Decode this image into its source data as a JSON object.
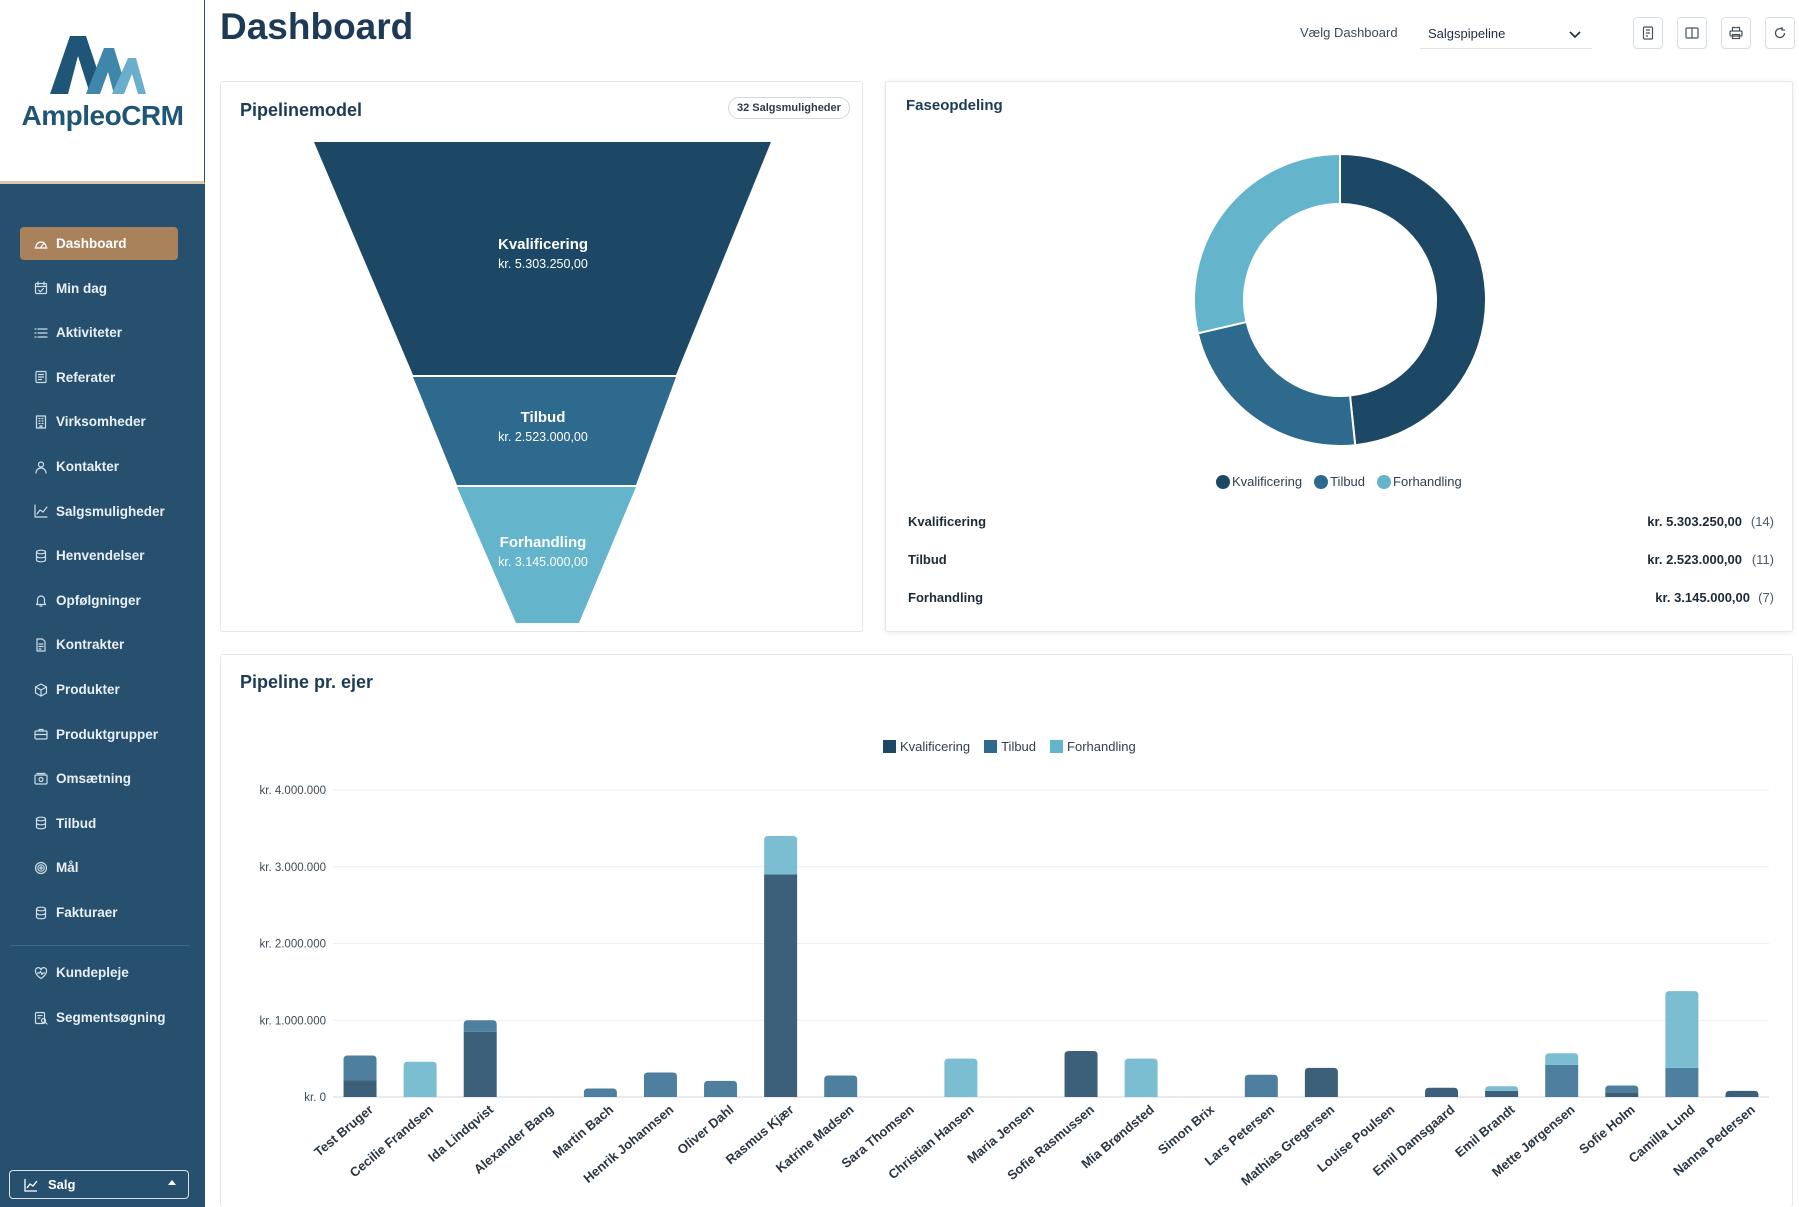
{
  "app": {
    "name": "AmpleoCRM"
  },
  "sidebar": {
    "items": [
      {
        "label": "Dashboard",
        "icon": "gauge-icon",
        "active": true
      },
      {
        "label": "Min dag",
        "icon": "calendar-check-icon"
      },
      {
        "label": "Aktiviteter",
        "icon": "list-icon"
      },
      {
        "label": "Referater",
        "icon": "note-icon"
      },
      {
        "label": "Virksomheder",
        "icon": "building-icon"
      },
      {
        "label": "Kontakter",
        "icon": "user-icon"
      },
      {
        "label": "Salgsmuligheder",
        "icon": "trend-chart-icon"
      },
      {
        "label": "Henvendelser",
        "icon": "database-icon"
      },
      {
        "label": "Opfølgninger",
        "icon": "bell-icon"
      },
      {
        "label": "Kontrakter",
        "icon": "document-icon"
      },
      {
        "label": "Produkter",
        "icon": "box-icon"
      },
      {
        "label": "Produktgrupper",
        "icon": "briefcase-icon"
      },
      {
        "label": "Omsætning",
        "icon": "cash-icon"
      },
      {
        "label": "Tilbud",
        "icon": "database-icon"
      },
      {
        "label": "Mål",
        "icon": "target-icon"
      },
      {
        "label": "Fakturaer",
        "icon": "database-icon"
      }
    ],
    "items2": [
      {
        "label": "Kundepleje",
        "icon": "heart-icon"
      },
      {
        "label": "Segmentsøgning",
        "icon": "segment-search-icon"
      }
    ],
    "mode_select": {
      "value": "Salg"
    }
  },
  "header": {
    "title": "Dashboard",
    "dashboard_label": "Vælg Dashboard",
    "dashboard_value": "Salgspipeline"
  },
  "colors": {
    "kvalificering": "#1c4866",
    "tilbud": "#2d6a8d",
    "forhandling": "#64b4cb",
    "sidebar": "#26506e",
    "active": "#a9825c"
  },
  "pipeline": {
    "title": "Pipelinemodel",
    "badge": "32 Salgsmuligheder",
    "stages": [
      {
        "name": "Kvalificering",
        "value": "kr. 5.303.250,00"
      },
      {
        "name": "Tilbud",
        "value": "kr. 2.523.000,00"
      },
      {
        "name": "Forhandling",
        "value": "kr. 3.145.000,00"
      }
    ]
  },
  "phases": {
    "title": "Faseopdeling",
    "rows": [
      {
        "name": "Kvalificering",
        "value": "kr. 5.303.250,00",
        "count": "(14)"
      },
      {
        "name": "Tilbud",
        "value": "kr. 2.523.000,00",
        "count": "(11)"
      },
      {
        "name": "Forhandling",
        "value": "kr. 3.145.000,00",
        "count": "(7)"
      }
    ]
  },
  "chart_data": [
    {
      "type": "pie",
      "title": "Faseopdeling",
      "categories": [
        "Kvalificering",
        "Tilbud",
        "Forhandling"
      ],
      "values": [
        5303250,
        2523000,
        3145000
      ],
      "legend": "bottom"
    },
    {
      "type": "bar",
      "title": "Pipeline pr. ejer",
      "stacked": true,
      "legend": "top",
      "ylim": [
        0,
        4000000
      ],
      "yticks": [
        {
          "value": 0,
          "label": "kr. 0"
        },
        {
          "value": 1000000,
          "label": "kr. 1.000.000"
        },
        {
          "value": 2000000,
          "label": "kr. 2.000.000"
        },
        {
          "value": 3000000,
          "label": "kr. 3.000.000"
        },
        {
          "value": 4000000,
          "label": "kr. 4.000.000"
        }
      ],
      "categories": [
        "Test Bruger",
        "Cecilie Frandsen",
        "Ida Lindqvist",
        "Alexander Bang",
        "Martin Bach",
        "Henrik Johannsen",
        "Oliver Dahl",
        "Rasmus Kjær",
        "Katrine Madsen",
        "Sara Thomsen",
        "Christian Hansen",
        "Maria Jensen",
        "Sofie Rasmussen",
        "Mia Brøndsted",
        "Simon Brix",
        "Lars Petersen",
        "Mathias Gregersen",
        "Louise Poulsen",
        "Emil Damsgaard",
        "Emil Brandt",
        "Mette Jørgensen",
        "Sofie Holm",
        "Camilla Lund",
        "Nanna Pedersen"
      ],
      "series": [
        {
          "name": "Kvalificering",
          "values": [
            220000,
            0,
            850000,
            0,
            0,
            0,
            0,
            2900000,
            0,
            0,
            0,
            0,
            600000,
            0,
            0,
            0,
            380000,
            0,
            120000,
            80000,
            0,
            60000,
            0,
            80000
          ]
        },
        {
          "name": "Tilbud",
          "values": [
            320000,
            0,
            150000,
            0,
            110000,
            320000,
            210000,
            0,
            280000,
            0,
            0,
            0,
            0,
            0,
            0,
            290000,
            0,
            0,
            0,
            0,
            420000,
            90000,
            380000,
            0
          ]
        },
        {
          "name": "Forhandling",
          "values": [
            0,
            460000,
            0,
            0,
            0,
            0,
            0,
            500000,
            0,
            0,
            500000,
            0,
            0,
            500000,
            0,
            0,
            0,
            0,
            0,
            60000,
            150000,
            0,
            1000000,
            0
          ]
        }
      ]
    }
  ]
}
